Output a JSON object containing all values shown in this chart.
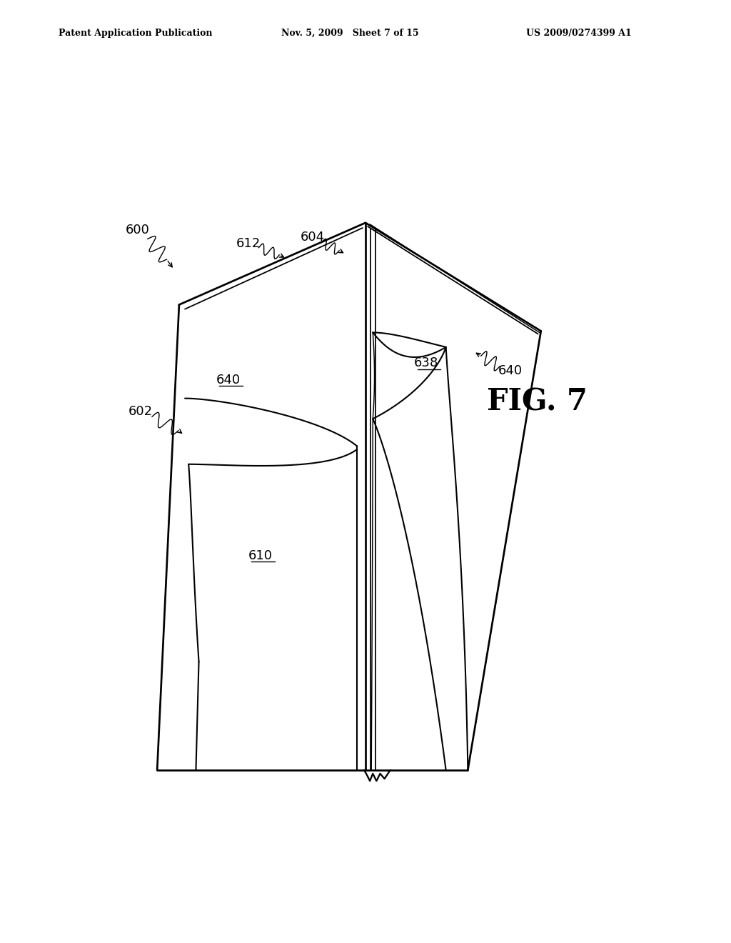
{
  "header_left": "Patent Application Publication",
  "header_mid": "Nov. 5, 2009   Sheet 7 of 15",
  "header_right": "US 2009/0274399 A1",
  "fig_label": "FIG. 7",
  "background_color": "#ffffff",
  "line_color": "#000000",
  "lw": 1.5
}
